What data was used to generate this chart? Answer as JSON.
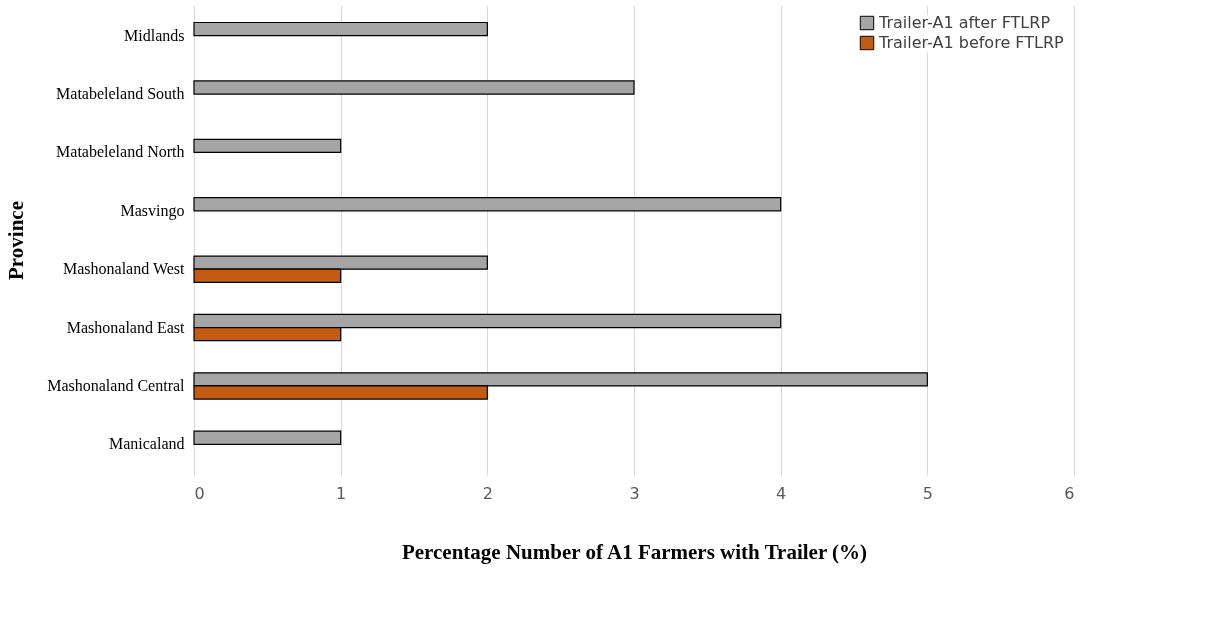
{
  "chart_data": {
    "type": "bar",
    "orientation": "horizontal",
    "xlabel": "Percentage Number of A1 Farmers with Trailer (%)",
    "ylabel": "Province",
    "categories": [
      "Midlands",
      "Matabeleland South",
      "Matabeleland North",
      "Masvingo",
      "Mashonaland West",
      "Mashonaland East",
      "Mashonaland Central",
      "Manicaland"
    ],
    "series": [
      {
        "name": "Trailer-A1 after FTLRP",
        "color": "#a5a5a5",
        "values": [
          2,
          3,
          1,
          4,
          2,
          4,
          5,
          1
        ]
      },
      {
        "name": "Trailer-A1 before FTLRP",
        "color": "#c55a11",
        "values": [
          0,
          0,
          0,
          0,
          1,
          1,
          2,
          0
        ]
      }
    ],
    "xlim": [
      0,
      6
    ],
    "xticks": [
      0,
      1,
      2,
      3,
      4,
      5,
      6
    ],
    "grid": "x",
    "legend": "top right"
  }
}
